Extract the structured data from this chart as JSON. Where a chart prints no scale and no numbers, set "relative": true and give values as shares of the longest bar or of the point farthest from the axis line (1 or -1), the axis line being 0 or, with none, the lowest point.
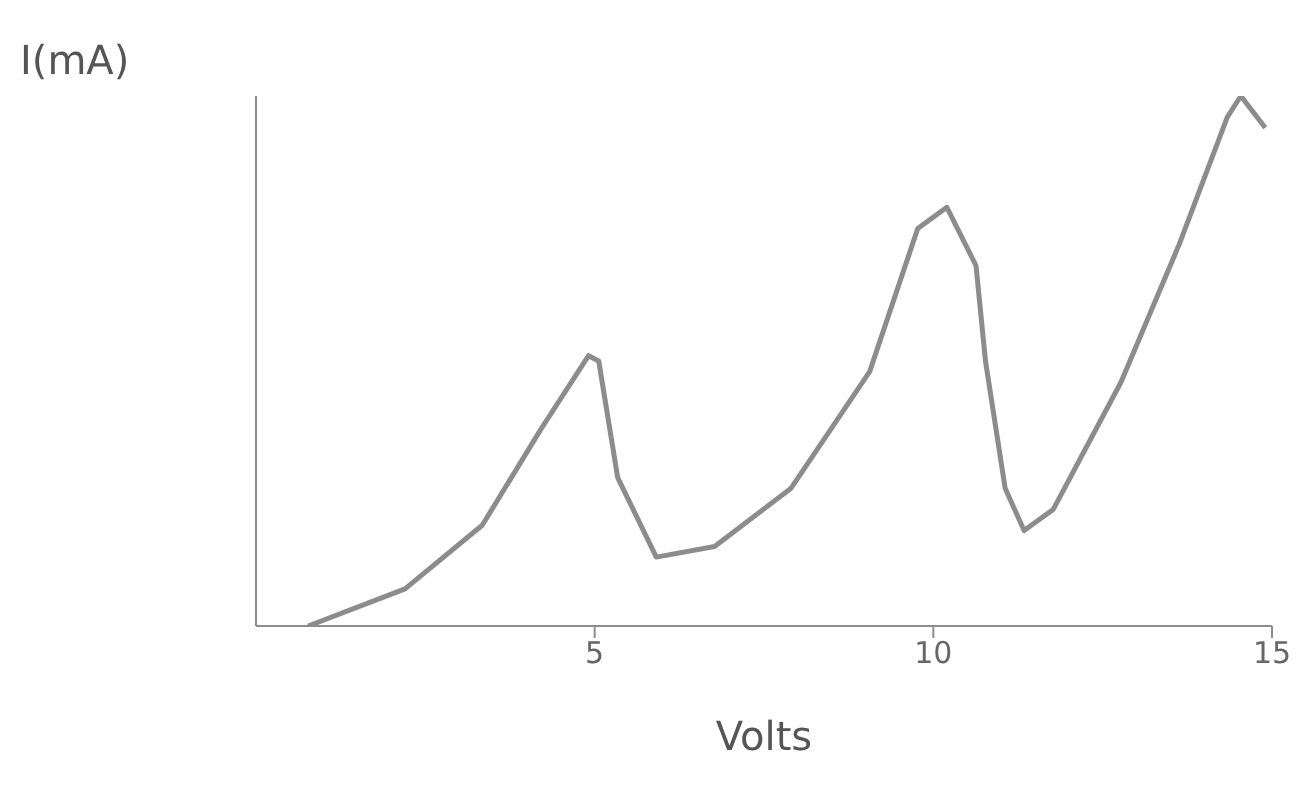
{
  "chart_data": {
    "type": "line",
    "xlabel": "Volts",
    "ylabel": "I(mA)",
    "relative": true,
    "xlim": [
      0,
      15
    ],
    "xticks": [
      5,
      10,
      15
    ],
    "grid": false,
    "legend": false,
    "marker": "none",
    "line_style": "solid",
    "series": [
      {
        "color": "#8c8c8c",
        "x": [
          0.77,
          2.2,
          3.34,
          4.2,
          4.91,
          5.06,
          5.34,
          5.91,
          6.77,
          7.9,
          9.06,
          9.77,
          10.2,
          10.63,
          10.77,
          11.06,
          11.34,
          11.77,
          12.77,
          13.63,
          14.34,
          14.54,
          14.9
        ],
        "values": [
          0,
          0.07,
          0.19,
          0.37,
          0.51,
          0.5,
          0.28,
          0.13,
          0.15,
          0.26,
          0.48,
          0.75,
          0.79,
          0.68,
          0.5,
          0.26,
          0.18,
          0.22,
          0.46,
          0.72,
          0.96,
          1,
          0.94
        ]
      }
    ]
  }
}
